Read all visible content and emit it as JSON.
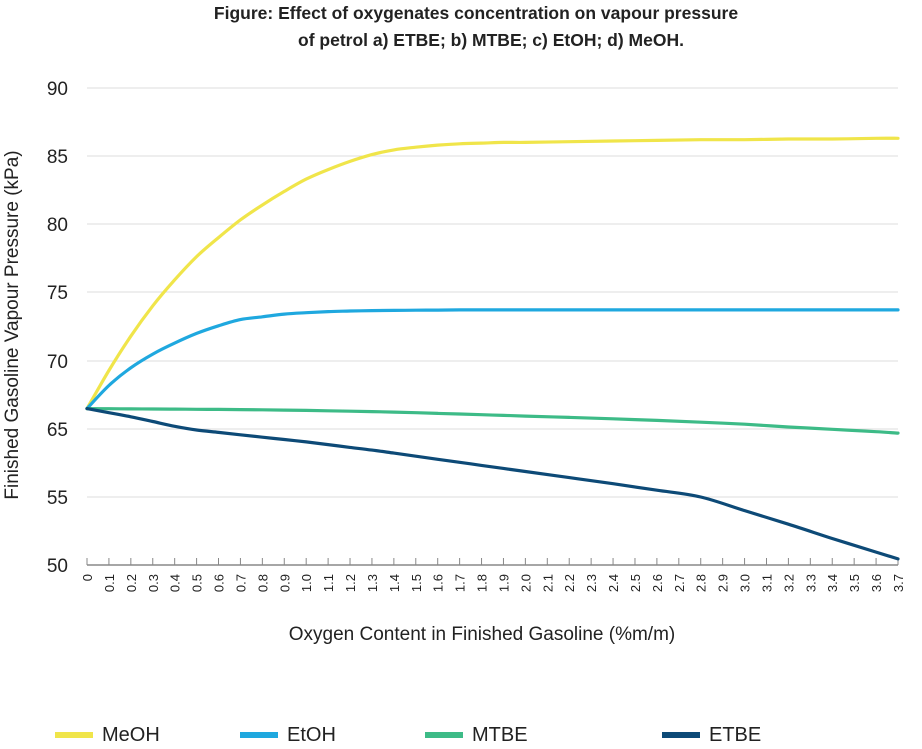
{
  "chart_data": {
    "type": "line",
    "title_line1": "Figure: Effect of oxygenates concentration on vapour pressure",
    "title_line2": "of petrol a) ETBE; b) MTBE; c) EtOH; d) MeOH.",
    "xlabel": "Oxygen Content in Finished Gasoline (%m/m)",
    "ylabel": "Finished Gasoline Vapour Pressure (kPa)",
    "x_ticks": [
      "0",
      "0.1",
      "0.2",
      "0.3",
      "0.4",
      "0.5",
      "0.6",
      "0.7",
      "0.8",
      "0.9",
      "1.0",
      "1.1",
      "1.2",
      "1.3",
      "1.4",
      "1.5",
      "1.6",
      "1.7",
      "1.8",
      "1.9",
      "2.0",
      "2.1",
      "2.2",
      "2.3",
      "2.4",
      "2.5",
      "2.6",
      "2.7",
      "2.8",
      "2.9",
      "3.0",
      "3.1",
      "3.2",
      "3.3",
      "3.4",
      "3.5",
      "3.6",
      "3.7"
    ],
    "y_ticks": [
      "50",
      "55",
      "65",
      "70",
      "75",
      "80",
      "85",
      "90"
    ],
    "x": [
      0,
      0.1,
      0.2,
      0.3,
      0.4,
      0.5,
      0.6,
      0.7,
      0.8,
      0.9,
      1.0,
      1.1,
      1.2,
      1.3,
      1.4,
      1.5,
      1.6,
      1.7,
      1.8,
      1.9,
      2.0,
      2.2,
      2.4,
      2.6,
      2.8,
      3.0,
      3.2,
      3.4,
      3.6,
      3.7
    ],
    "series": [
      {
        "name": "MeOH",
        "color": "#f0e54a",
        "values": [
          66.5,
          69.3,
          71.8,
          74.0,
          75.9,
          77.6,
          79.0,
          80.3,
          81.4,
          82.4,
          83.3,
          84.0,
          84.6,
          85.1,
          85.45,
          85.65,
          85.8,
          85.9,
          85.95,
          86.0,
          86.0,
          86.05,
          86.1,
          86.15,
          86.2,
          86.2,
          86.25,
          86.25,
          86.3,
          86.3
        ]
      },
      {
        "name": "EtOH",
        "color": "#1fa8df",
        "values": [
          66.5,
          68.2,
          69.5,
          70.5,
          71.3,
          72.0,
          72.55,
          73.0,
          73.2,
          73.4,
          73.5,
          73.58,
          73.62,
          73.65,
          73.67,
          73.68,
          73.69,
          73.7,
          73.7,
          73.7,
          73.7,
          73.7,
          73.7,
          73.7,
          73.7,
          73.7,
          73.7,
          73.7,
          73.7,
          73.7
        ]
      },
      {
        "name": "MTBE",
        "color": "#3dbb87",
        "values": [
          66.5,
          66.49,
          66.48,
          66.47,
          66.46,
          66.45,
          66.44,
          66.43,
          66.41,
          66.39,
          66.37,
          66.34,
          66.31,
          66.28,
          66.24,
          66.2,
          66.15,
          66.1,
          66.05,
          66.0,
          65.95,
          65.85,
          65.75,
          65.63,
          65.5,
          65.35,
          65.15,
          64.95,
          64.6,
          64.4
        ]
      },
      {
        "name": "ETBE",
        "color": "#0d4a77",
        "values": [
          66.5,
          66.2,
          65.9,
          65.55,
          65.2,
          64.85,
          64.5,
          64.15,
          63.8,
          63.45,
          63.1,
          62.7,
          62.3,
          61.9,
          61.45,
          61.0,
          60.55,
          60.1,
          59.65,
          59.2,
          58.75,
          57.85,
          56.95,
          56.0,
          55.0,
          54.0,
          53.0,
          51.95,
          50.95,
          50.45
        ]
      }
    ],
    "legend_position": "bottom",
    "grid": "horizontal"
  }
}
